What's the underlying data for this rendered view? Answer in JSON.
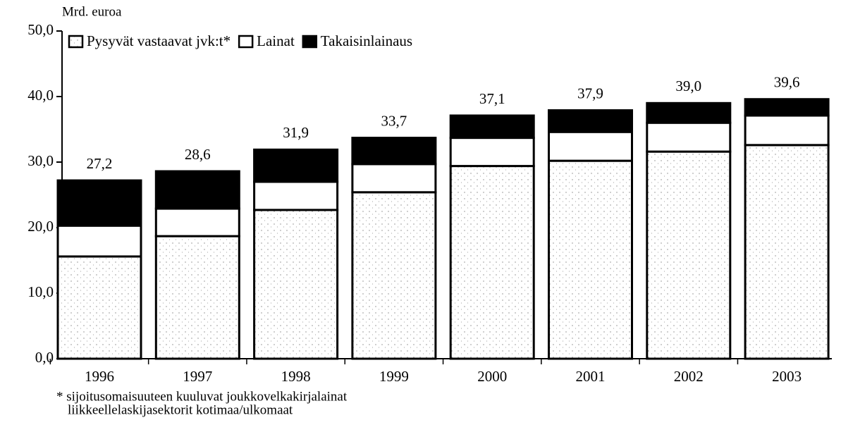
{
  "chart_data": {
    "type": "stacked_bar",
    "y_label": "Mrd. euroa",
    "categories": [
      "1996",
      "1997",
      "1998",
      "1999",
      "2000",
      "2001",
      "2002",
      "2003"
    ],
    "series": [
      {
        "name": "Pysyvät vastaavat jvk:t*",
        "color": "#ffffff",
        "pattern": "dots",
        "values": [
          15.6,
          18.7,
          22.7,
          25.4,
          29.4,
          30.2,
          31.6,
          32.6
        ]
      },
      {
        "name": "Lainat",
        "color": "#ffffff",
        "values": [
          4.7,
          4.2,
          4.3,
          4.3,
          4.3,
          4.4,
          4.4,
          4.5
        ]
      },
      {
        "name": "Takaisinlainaus",
        "color": "#000000",
        "values": [
          6.9,
          5.7,
          4.9,
          4.0,
          3.4,
          3.3,
          3.0,
          2.5
        ]
      }
    ],
    "totals": [
      27.2,
      28.6,
      31.9,
      33.7,
      37.1,
      37.9,
      39.0,
      39.6
    ],
    "total_labels": [
      "27,2",
      "28,6",
      "31,9",
      "33,7",
      "37,1",
      "37,9",
      "39,0",
      "39,6"
    ],
    "ylim": [
      0,
      50
    ],
    "yticks": [
      {
        "value": 0,
        "label": "0,0"
      },
      {
        "value": 10,
        "label": "10,0"
      },
      {
        "value": 20,
        "label": "20,0"
      },
      {
        "value": 30,
        "label": "30,0"
      },
      {
        "value": 40,
        "label": "40,0"
      },
      {
        "value": 50,
        "label": "50,0"
      }
    ],
    "footnote": [
      "*  sijoitusomaisuuteen kuuluvat joukkovelkakirjalainat",
      "liikkeellelaskijasektorit kotimaa/ulkomaat"
    ]
  }
}
